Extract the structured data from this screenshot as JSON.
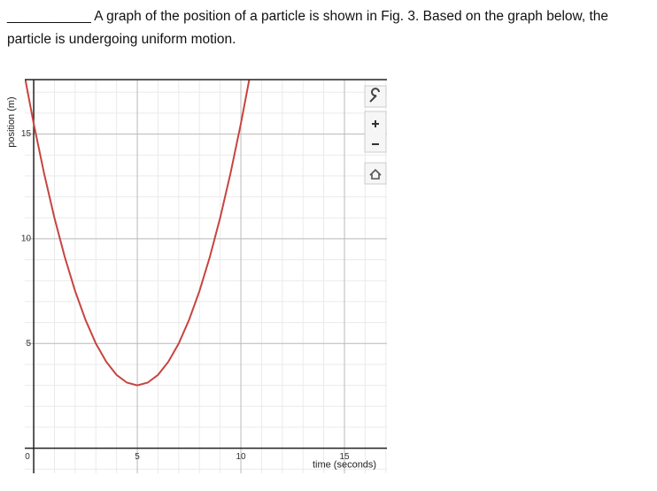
{
  "question": {
    "blank": "___________",
    "text": "A graph of the position of a particle is shown in Fig. 3.  Based on the graph below, the particle is undergoing uniform motion."
  },
  "chart_data": {
    "type": "line",
    "x_label": "time (seconds)",
    "y_label": "position (m)",
    "x": [
      -0.4,
      0,
      0.5,
      1,
      1.5,
      2,
      2.5,
      3,
      3.5,
      4,
      4.5,
      5,
      5.5,
      6,
      6.5,
      7,
      7.5,
      8,
      8.5,
      9,
      9.5,
      10,
      10.4
    ],
    "series": [
      {
        "color": "#c74440",
        "values": [
          17.58,
          15.5,
          13.13,
          11,
          9.13,
          7.5,
          6.13,
          5,
          4.13,
          3.5,
          3.13,
          3,
          3.13,
          3.5,
          4.13,
          5,
          6.13,
          7.5,
          9.13,
          11,
          13.13,
          15.5,
          17.58
        ]
      }
    ],
    "xlim": [
      -0.43,
      17.05
    ],
    "ylim": [
      -1.2,
      17.6
    ],
    "xticks": [
      0,
      5,
      10,
      15
    ],
    "yticks": [
      5,
      10,
      15
    ],
    "grid": true
  }
}
